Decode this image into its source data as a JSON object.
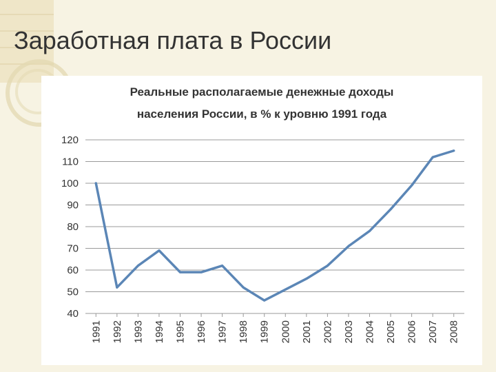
{
  "slide": {
    "title": "Заработная плата в России"
  },
  "chart_data": {
    "type": "line",
    "title_lines": [
      "Реальные располагаемые денежные доходы",
      "населения России, в % к уровню 1991 года"
    ],
    "xlabel": "",
    "ylabel": "",
    "x": [
      "1991",
      "1992",
      "1993",
      "1994",
      "1995",
      "1996",
      "1997",
      "1998",
      "1999",
      "2000",
      "2001",
      "2002",
      "2003",
      "2004",
      "2005",
      "2006",
      "2007",
      "2008"
    ],
    "series": [
      {
        "values": [
          100,
          52,
          62,
          69,
          59,
          59,
          62,
          52,
          46,
          51,
          56,
          62,
          71,
          78,
          88,
          99,
          112,
          115
        ]
      }
    ],
    "yticks": [
      "40",
      "50",
      "60",
      "70",
      "80",
      "90",
      "100",
      "110",
      "120"
    ],
    "ylim": [
      40,
      120
    ],
    "grid": true,
    "legend": "none",
    "line_color": "#5b86b6",
    "grid_color": "#999999"
  }
}
